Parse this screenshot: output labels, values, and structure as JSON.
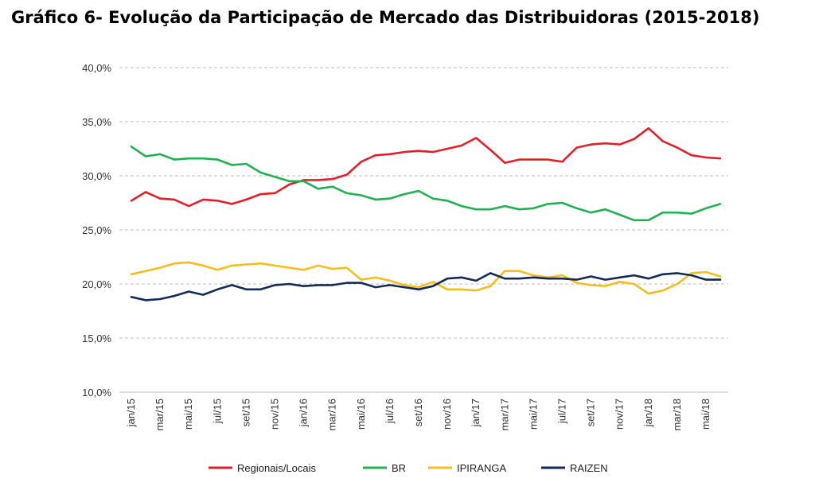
{
  "chart_data": {
    "type": "line",
    "title": "Gráfico 6- Evolução da Participação de Mercado das Distribuidoras (2015-2018)",
    "xlabel": "",
    "ylabel": "",
    "ylim": [
      10,
      40
    ],
    "y_ticks": [
      "10,0%",
      "15,0%",
      "20,0%",
      "25,0%",
      "30,0%",
      "35,0%",
      "40,0%"
    ],
    "grid": "horizontal-dashed",
    "legend_position": "bottom",
    "categories": [
      "jan/15",
      "fev/15",
      "mar/15",
      "abr/15",
      "mai/15",
      "jun/15",
      "jul/15",
      "ago/15",
      "set/15",
      "out/15",
      "nov/15",
      "dez/15",
      "jan/16",
      "fev/16",
      "mar/16",
      "abr/16",
      "mai/16",
      "jun/16",
      "jul/16",
      "ago/16",
      "set/16",
      "out/16",
      "nov/16",
      "dez/16",
      "jan/17",
      "fev/17",
      "mar/17",
      "abr/17",
      "mai/17",
      "jun/17",
      "jul/17",
      "ago/17",
      "set/17",
      "out/17",
      "nov/17",
      "dez/17",
      "jan/18",
      "fev/18",
      "mar/18",
      "abr/18",
      "mai/18",
      "jun/18"
    ],
    "x_tick_labels": [
      {
        "index": 0,
        "label": "jan/15"
      },
      {
        "index": 2,
        "label": "mar/15"
      },
      {
        "index": 4,
        "label": "mai/15"
      },
      {
        "index": 6,
        "label": "jul/15"
      },
      {
        "index": 8,
        "label": "set/15"
      },
      {
        "index": 10,
        "label": "nov/15"
      },
      {
        "index": 12,
        "label": "jan/16"
      },
      {
        "index": 14,
        "label": "mar/16"
      },
      {
        "index": 16,
        "label": "mai/16"
      },
      {
        "index": 18,
        "label": "jul/16"
      },
      {
        "index": 20,
        "label": "set/16"
      },
      {
        "index": 22,
        "label": "nov/16"
      },
      {
        "index": 24,
        "label": "jan/17"
      },
      {
        "index": 26,
        "label": "mar/17"
      },
      {
        "index": 28,
        "label": "mai/17"
      },
      {
        "index": 30,
        "label": "jul/17"
      },
      {
        "index": 32,
        "label": "set/17"
      },
      {
        "index": 34,
        "label": "nov/17"
      },
      {
        "index": 36,
        "label": "jan/18"
      },
      {
        "index": 38,
        "label": "mar/18"
      },
      {
        "index": 40,
        "label": "mai/18"
      }
    ],
    "series": [
      {
        "name": "Regionais/Locais",
        "color": "#e3202a",
        "values": [
          27.7,
          28.5,
          27.9,
          27.8,
          27.2,
          27.8,
          27.7,
          27.4,
          27.8,
          28.3,
          28.4,
          29.2,
          29.6,
          29.6,
          29.7,
          30.1,
          31.3,
          31.9,
          32.0,
          32.2,
          32.3,
          32.2,
          32.5,
          32.8,
          33.5,
          32.4,
          31.2,
          31.5,
          31.5,
          31.5,
          31.3,
          32.6,
          32.9,
          33.0,
          32.9,
          33.4,
          34.4,
          33.2,
          32.6,
          31.9,
          31.7,
          31.6
        ]
      },
      {
        "name": "BR",
        "color": "#21b052",
        "values": [
          32.7,
          31.8,
          32.0,
          31.5,
          31.6,
          31.6,
          31.5,
          31.0,
          31.1,
          30.3,
          29.9,
          29.5,
          29.5,
          28.8,
          29.0,
          28.4,
          28.2,
          27.8,
          27.9,
          28.3,
          28.6,
          27.9,
          27.7,
          27.2,
          26.9,
          26.9,
          27.2,
          26.9,
          27.0,
          27.4,
          27.5,
          27.0,
          26.6,
          26.9,
          26.4,
          25.9,
          25.9,
          26.6,
          26.6,
          26.5,
          27.0,
          27.4
        ]
      },
      {
        "name": "IPIRANGA",
        "color": "#f5be1f",
        "values": [
          20.9,
          21.2,
          21.5,
          21.9,
          22.0,
          21.7,
          21.3,
          21.7,
          21.8,
          21.9,
          21.7,
          21.5,
          21.3,
          21.7,
          21.4,
          21.5,
          20.4,
          20.6,
          20.3,
          19.9,
          19.7,
          20.2,
          19.5,
          19.5,
          19.4,
          19.8,
          21.2,
          21.2,
          20.8,
          20.6,
          20.8,
          20.1,
          19.9,
          19.8,
          20.2,
          20.0,
          19.1,
          19.4,
          20.0,
          21.0,
          21.1,
          20.7
        ]
      },
      {
        "name": "RAIZEN",
        "color": "#132b55",
        "values": [
          18.8,
          18.5,
          18.6,
          18.9,
          19.3,
          19.0,
          19.5,
          19.9,
          19.5,
          19.5,
          19.9,
          20.0,
          19.8,
          19.9,
          19.9,
          20.1,
          20.1,
          19.7,
          19.9,
          19.7,
          19.5,
          19.8,
          20.5,
          20.6,
          20.3,
          21.0,
          20.5,
          20.5,
          20.6,
          20.5,
          20.5,
          20.4,
          20.7,
          20.4,
          20.6,
          20.8,
          20.5,
          20.9,
          21.0,
          20.8,
          20.4,
          20.4
        ]
      }
    ]
  }
}
